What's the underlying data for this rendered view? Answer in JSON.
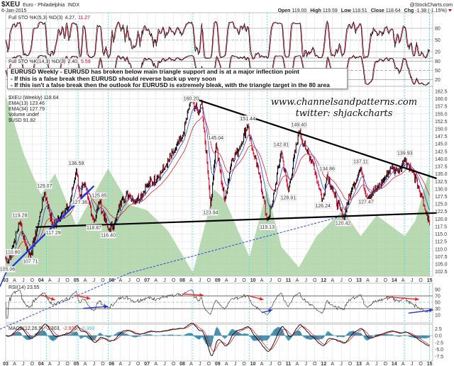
{
  "header": {
    "symbol": "$XEU",
    "name": "Euro - Philadelphia",
    "exchange": "INDX",
    "date": "6-Jan-2015",
    "watermark": "@StockCharts.com",
    "open_label": "Open",
    "open": "119.00",
    "high_label": "High",
    "high": "119.59",
    "low_label": "Low",
    "low": "118.51",
    "close_label": "Close",
    "close": "118.64",
    "chg_label": "Chg",
    "chg": "-1.38 (-1.15%)"
  },
  "annotation": {
    "line1": "EURUSD Weekly - EURUSD has broken below main triangle support and is at a major inflection point",
    "line2": "- If this is a false break then EURUSD should reverse back up very soon",
    "line3": "- If this isn't a false break then the outlook for EURUSD is extremely bleak, with the triangle target in the 80 area"
  },
  "watermark_text": {
    "site": "www.channelsandpatterns.com",
    "twitter": "twitter: shjackcharts"
  },
  "colors": {
    "up": "#000000",
    "down": "#cc0022",
    "ema13": "#3344cc",
    "ema34": "#dd2233",
    "usd_area": "#a8d0a0",
    "grid": "#dddddd",
    "marker": "#33dddd",
    "trend": "#000000",
    "blue_trend": "#1133ee",
    "macd_hist": "#3a88aa",
    "macd_signal": "#ee2222"
  },
  "chart_data": [
    {
      "type": "line",
      "panel": "Full STO",
      "legend": {
        "label": "Full STO %K(5,3) %D(3)",
        "k": "4.27",
        "d": "11.27"
      },
      "ylim": [
        0,
        100
      ],
      "yticks": [
        "80",
        "50",
        "20"
      ]
    },
    {
      "type": "line",
      "panel": "Full STO",
      "legend": {
        "label": "Full STO %K(14,3) %D(3)",
        "k": "2.40",
        "d": "5.59"
      },
      "ylim": [
        0,
        100
      ],
      "yticks": [
        "80",
        "50",
        "20"
      ]
    },
    {
      "type": "candlestick",
      "panel": "price",
      "legend": {
        "price": "$XEU (Weekly) 118.64",
        "ema13": "EMA(13) 123.46",
        "ema34": "EMA(34) 127.79",
        "volume": "Volume undef",
        "usd": "$USD 91.82"
      },
      "ylim": [
        102.5,
        162.5
      ],
      "yticks": [
        "162.5",
        "160.0",
        "157.5",
        "155.0",
        "152.5",
        "150.0",
        "147.5",
        "145.0",
        "142.5",
        "140.0",
        "137.5",
        "135.0",
        "132.5",
        "130.0",
        "127.5",
        "125.0",
        "122.5",
        "120.0",
        "117.5",
        "115.0",
        "112.5",
        "110.0",
        "107.5",
        "105.0",
        "102.5"
      ],
      "xticks": [
        "03",
        "A",
        "J",
        "O",
        "04",
        "A",
        "J",
        "O",
        "05",
        "A",
        "J",
        "O",
        "06",
        "A",
        "J",
        "O",
        "07",
        "A",
        "J",
        "O",
        "08",
        "A",
        "J",
        "O",
        "09",
        "A",
        "J",
        "O",
        "10",
        "A",
        "J",
        "O",
        "11",
        "A",
        "J",
        "O",
        "12",
        "A",
        "J",
        "O",
        "13",
        "A",
        "J",
        "O",
        "14",
        "A",
        "J",
        "O",
        "15"
      ],
      "xlim": [
        2003.0,
        2015.05
      ],
      "price_points": [
        [
          2003.0,
          107
        ],
        [
          2003.05,
          105.06
        ],
        [
          2003.2,
          110.8
        ],
        [
          2003.4,
          119.28
        ],
        [
          2003.55,
          112
        ],
        [
          2003.7,
          107.71
        ],
        [
          2003.9,
          117
        ],
        [
          2004.1,
          129.07
        ],
        [
          2004.35,
          117.29
        ],
        [
          2004.6,
          122
        ],
        [
          2004.8,
          124
        ],
        [
          2005.0,
          136.59
        ],
        [
          2005.1,
          127.36
        ],
        [
          2005.2,
          132
        ],
        [
          2005.35,
          126
        ],
        [
          2005.5,
          118.87
        ],
        [
          2005.65,
          125.85
        ],
        [
          2005.9,
          116.4
        ],
        [
          2006.1,
          119
        ],
        [
          2006.3,
          127
        ],
        [
          2006.5,
          128
        ],
        [
          2006.7,
          126
        ],
        [
          2007.0,
          131
        ],
        [
          2007.3,
          134
        ],
        [
          2007.5,
          137
        ],
        [
          2007.8,
          143
        ],
        [
          2008.0,
          147
        ],
        [
          2008.25,
          160.2
        ],
        [
          2008.45,
          155
        ],
        [
          2008.55,
          159
        ],
        [
          2008.75,
          132
        ],
        [
          2008.8,
          123.94
        ],
        [
          2008.95,
          145.04
        ],
        [
          2009.2,
          126
        ],
        [
          2009.4,
          140
        ],
        [
          2009.6,
          143
        ],
        [
          2009.85,
          151.44
        ],
        [
          2010.0,
          142
        ],
        [
          2010.2,
          134
        ],
        [
          2010.4,
          119.13
        ],
        [
          2010.55,
          125
        ],
        [
          2010.8,
          142.81
        ],
        [
          2011.0,
          128.91
        ],
        [
          2011.3,
          149.4
        ],
        [
          2011.5,
          143
        ],
        [
          2011.7,
          139
        ],
        [
          2011.85,
          131
        ],
        [
          2011.98,
          126.24
        ],
        [
          2012.1,
          134.86
        ],
        [
          2012.3,
          128
        ],
        [
          2012.55,
          120.42
        ],
        [
          2012.8,
          130
        ],
        [
          2013.05,
          137.11
        ],
        [
          2013.2,
          127.47
        ],
        [
          2013.5,
          130
        ],
        [
          2013.7,
          133
        ],
        [
          2013.9,
          137
        ],
        [
          2014.1,
          136
        ],
        [
          2014.3,
          139.93
        ],
        [
          2014.5,
          136
        ],
        [
          2014.7,
          130
        ],
        [
          2014.85,
          124
        ],
        [
          2015.0,
          118.64
        ]
      ],
      "peak_labels": [
        [
          2003.05,
          105.06,
          "105.06"
        ],
        [
          2003.2,
          110.8,
          "110.80"
        ],
        [
          2003.4,
          119.28,
          "119.28"
        ],
        [
          2003.7,
          107.71,
          "107.71"
        ],
        [
          2004.1,
          129.07,
          "129.07"
        ],
        [
          2004.35,
          117.29,
          "117.29"
        ],
        [
          2005.0,
          136.59,
          "136.59"
        ],
        [
          2005.1,
          127.36,
          "127.36"
        ],
        [
          2005.65,
          125.85,
          "125.85"
        ],
        [
          2005.5,
          118.87,
          "118.87"
        ],
        [
          2005.9,
          116.4,
          "116.40"
        ],
        [
          2008.25,
          160.2,
          "160.20"
        ],
        [
          2008.95,
          145.04,
          "145.04"
        ],
        [
          2008.8,
          123.94,
          "123.94"
        ],
        [
          2009.85,
          151.44,
          "151.44"
        ],
        [
          2010.4,
          119.13,
          "119.13"
        ],
        [
          2010.8,
          142.81,
          "142.81"
        ],
        [
          2011.0,
          128.91,
          "128.91"
        ],
        [
          2011.3,
          149.4,
          "149.40"
        ],
        [
          2012.1,
          134.86,
          "134.86"
        ],
        [
          2011.98,
          126.24,
          "126.24"
        ],
        [
          2012.55,
          120.42,
          "120.42"
        ],
        [
          2013.05,
          137.11,
          "137.11"
        ],
        [
          2013.2,
          127.47,
          "127.47"
        ],
        [
          2014.3,
          139.93,
          "139.93"
        ]
      ],
      "usd_points": [
        [
          2003.0,
          106
        ],
        [
          2003.5,
          95
        ],
        [
          2004.0,
          87
        ],
        [
          2004.4,
          91
        ],
        [
          2005.0,
          81
        ],
        [
          2005.9,
          92
        ],
        [
          2006.5,
          85
        ],
        [
          2007.0,
          84
        ],
        [
          2007.6,
          80
        ],
        [
          2008.3,
          72
        ],
        [
          2008.9,
          88
        ],
        [
          2009.2,
          86
        ],
        [
          2009.9,
          75
        ],
        [
          2010.4,
          88
        ],
        [
          2010.8,
          77
        ],
        [
          2011.3,
          73
        ],
        [
          2011.8,
          79
        ],
        [
          2012.55,
          84
        ],
        [
          2013.05,
          79
        ],
        [
          2013.5,
          83
        ],
        [
          2014.3,
          79
        ],
        [
          2014.6,
          82
        ],
        [
          2015.0,
          91.82
        ]
      ],
      "trendlines": [
        {
          "kind": "triangle-resistance",
          "from": [
            2008.35,
            160.0
          ],
          "to": [
            2015.2,
            133.5
          ]
        },
        {
          "kind": "triangle-support",
          "from": [
            2003.85,
            117.3
          ],
          "to": [
            2015.2,
            122.0
          ]
        },
        {
          "kind": "blue-support",
          "from": [
            2003.0,
            102.0
          ],
          "to": [
            2005.5,
            131.0
          ]
        },
        {
          "kind": "blue-dashed",
          "from": [
            2006.5,
            102.0
          ],
          "to": [
            2012.7,
            121.5
          ]
        }
      ],
      "marker_dates": [
        2004.15,
        2005.05,
        2005.9,
        2008.3,
        2009.9,
        2010.4,
        2014.3,
        2015.0
      ]
    },
    {
      "type": "line",
      "panel": "RSI",
      "legend": "RSI(14) 23.55",
      "ylim": [
        0,
        100
      ],
      "yticks": [
        "90",
        "70",
        "50",
        "30",
        "10"
      ],
      "divergence_arrows": [
        {
          "color": "red",
          "from": [
            2004.0,
            73
          ],
          "to": [
            2004.4,
            57
          ]
        },
        {
          "color": "red",
          "from": [
            2004.95,
            72
          ],
          "to": [
            2005.4,
            61
          ]
        },
        {
          "color": "blue",
          "from": [
            2005.2,
            31
          ],
          "to": [
            2005.9,
            37
          ]
        },
        {
          "color": "red",
          "from": [
            2008.0,
            76
          ],
          "to": [
            2008.6,
            72
          ]
        },
        {
          "color": "red",
          "from": [
            2009.85,
            71
          ],
          "to": [
            2010.3,
            58
          ]
        },
        {
          "color": "blue",
          "from": [
            2010.25,
            18
          ],
          "to": [
            2010.55,
            26
          ]
        },
        {
          "color": "red",
          "from": [
            2013.8,
            67
          ],
          "to": [
            2014.7,
            59
          ]
        },
        {
          "color": "blue",
          "from": [
            2014.4,
            16
          ],
          "to": [
            2015.1,
            26
          ]
        }
      ]
    },
    {
      "type": "line",
      "panel": "MACD",
      "legend": {
        "label": "MACD(12,26,9)",
        "macd": "-3.303",
        "signal": "-2.935",
        "hist": "-0.368"
      },
      "ylim": [
        -7.5,
        3.5
      ],
      "yticks": [
        "2.5",
        "0.0",
        "-2.5",
        "-5.0",
        "-7.5"
      ]
    }
  ]
}
